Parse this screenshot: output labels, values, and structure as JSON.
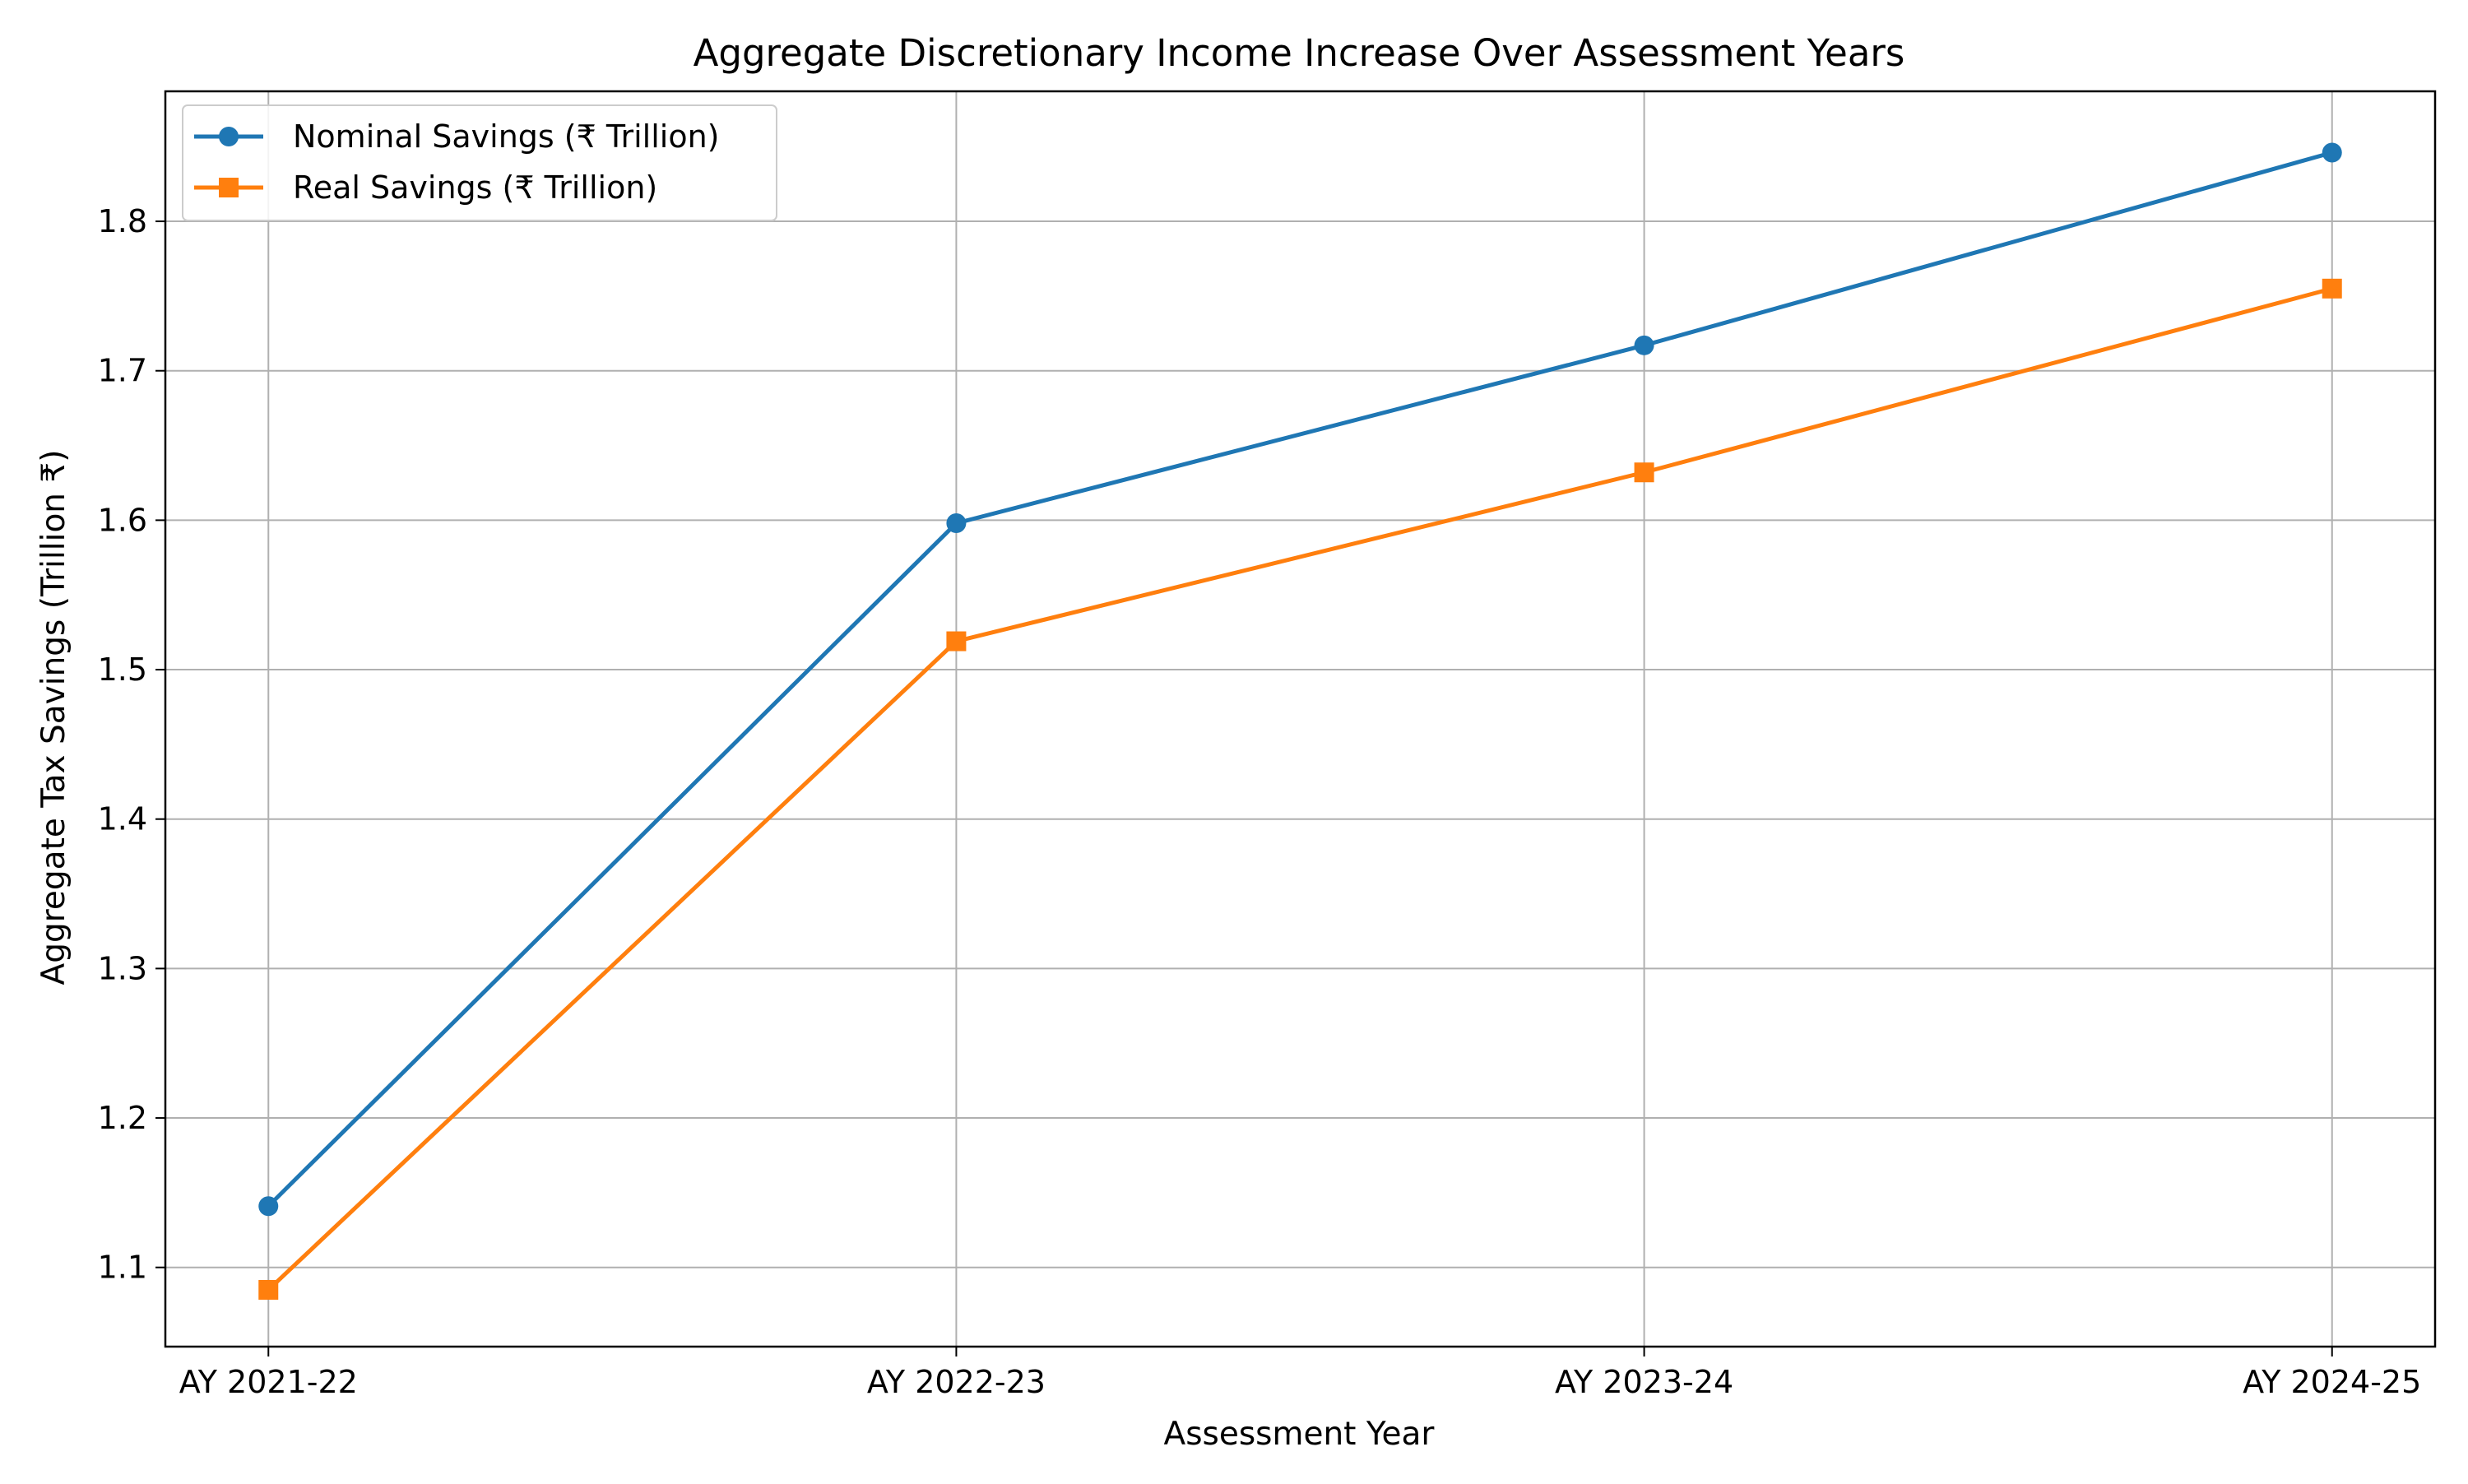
{
  "chart_data": {
    "type": "line",
    "title": "Aggregate Discretionary Income Increase Over Assessment Years",
    "xlabel": "Assessment Year",
    "ylabel": "Aggregate Tax Savings (Trillion ₹)",
    "categories": [
      "AY 2021-22",
      "AY 2022-23",
      "AY 2023-24",
      "AY 2024-25"
    ],
    "ylim": [
      1.047,
      1.887
    ],
    "yticks": [
      1.1,
      1.2,
      1.3,
      1.4,
      1.5,
      1.6,
      1.7,
      1.8
    ],
    "grid": true,
    "legend_position": "top-left",
    "series": [
      {
        "name": "Nominal Savings (₹ Trillion)",
        "values": [
          1.141,
          1.598,
          1.717,
          1.846
        ],
        "color": "#1f77b4",
        "marker": "circle"
      },
      {
        "name": "Real Savings (₹ Trillion)",
        "values": [
          1.085,
          1.519,
          1.632,
          1.755
        ],
        "color": "#ff7f0e",
        "marker": "square"
      }
    ]
  }
}
